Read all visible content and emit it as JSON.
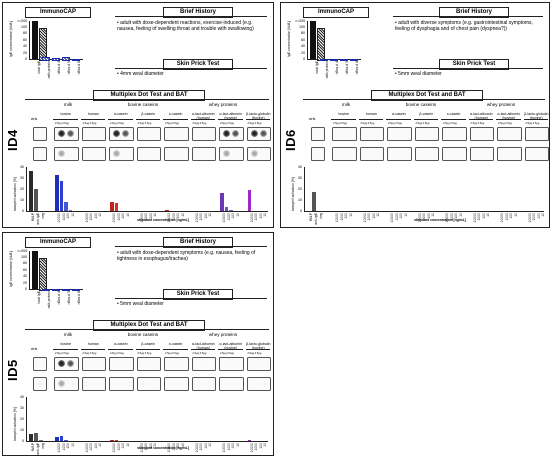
{
  "labels": {
    "immunocap": "ImmunoCAP",
    "brief_history": "Brief History",
    "skin_prick": "Skin Prick Test",
    "multiplex": "Multiplex Dot Test and BAT",
    "ige_axis": "IgE concentration [kU/L]",
    "ige_categories": [
      "total IgE",
      "milk protein",
      "nBos d 4",
      "nBos d 5",
      "nBos d 8"
    ],
    "ige_yticks": [
      "100",
      "80",
      "60",
      "40",
      "20",
      "0"
    ],
    "ige_top": ">=200",
    "groups": [
      "milk",
      "bovine caseins",
      "whey proteins"
    ],
    "columns": [
      "bovine",
      "human",
      "α-casein",
      "β-casein",
      "κ-casein",
      "α-lact-albumin (human)",
      "α-lact-albumin (bovine)",
      "β-lacto-globulin (bovine)"
    ],
    "ctrls": "ctrls",
    "basophil_axis": "basophil activation [%]",
    "bat_yticks": [
      "40",
      "30",
      "20",
      "10",
      "0"
    ],
    "ctrl_labels": [
      "fMLP",
      "anti-IgE",
      "neg"
    ],
    "conc_labels": [
      "10000",
      "1000",
      "100",
      "10"
    ],
    "stimulant": "stimulant concentration [ng/mL]",
    "dot_conc": "2.5µg  0.5µg"
  },
  "panels": [
    {
      "id": "ID4",
      "history": "adult with dose-dependent reactions, exercise-induced (e.g. nausea, feeling of swelling throat and trouble with swallowing)",
      "spt": "4mm weal diameter",
      "ige_values": [
        200,
        8,
        6,
        12,
        0
      ],
      "ige_labels": [
        "",
        "",
        "",
        "",
        ""
      ],
      "ctrl_bars": [
        36,
        20,
        0
      ],
      "bars": [
        [
          33,
          27,
          8,
          1
        ],
        [
          0,
          0,
          0,
          0
        ],
        [
          8,
          7,
          0,
          0
        ],
        [
          0,
          0,
          0,
          0
        ],
        [
          1,
          0,
          0,
          0
        ],
        [
          0,
          0,
          0,
          0
        ],
        [
          16,
          4,
          1,
          0
        ],
        [
          19,
          0,
          0,
          0
        ]
      ]
    },
    {
      "id": "ID6",
      "history": "adult with diverse symptoms (e.g. gastrointestinal symptoms, feeling of dysphagia and of chest pain (dyspnea?))",
      "spt": "5mm weal diameter",
      "ige_values": [
        200,
        0,
        0,
        0,
        0
      ],
      "ige_labels": [
        "",
        "",
        "",
        "",
        ""
      ],
      "ctrl_bars": [
        0,
        17,
        0
      ],
      "bars": [
        [
          0,
          0,
          0,
          0
        ],
        [
          0,
          0,
          0,
          0
        ],
        [
          0,
          0,
          0,
          0
        ],
        [
          0,
          0,
          0,
          0
        ],
        [
          0,
          0,
          0,
          0
        ],
        [
          0,
          0,
          0,
          0
        ],
        [
          0,
          0,
          0,
          0
        ],
        [
          0,
          0,
          0,
          0
        ]
      ]
    },
    {
      "id": "ID5",
      "history": "adult with dose-dependent symptoms (e.g. nausea, feeling of tightness in esophagus/trachea)",
      "spt": "5mm weal diameter",
      "ige_values": [
        200,
        0,
        0,
        0,
        0
      ],
      "ige_labels": [
        "",
        "",
        "",
        "",
        ""
      ],
      "ctrl_bars": [
        6,
        7,
        1
      ],
      "bars": [
        [
          4,
          5,
          1,
          0
        ],
        [
          0,
          0,
          0,
          0
        ],
        [
          1,
          1,
          0,
          0
        ],
        [
          0,
          0,
          0,
          0
        ],
        [
          0,
          0,
          0,
          0
        ],
        [
          0,
          0,
          0,
          0
        ],
        [
          0,
          0,
          0,
          0
        ],
        [
          1,
          0,
          0,
          0
        ]
      ]
    }
  ]
}
